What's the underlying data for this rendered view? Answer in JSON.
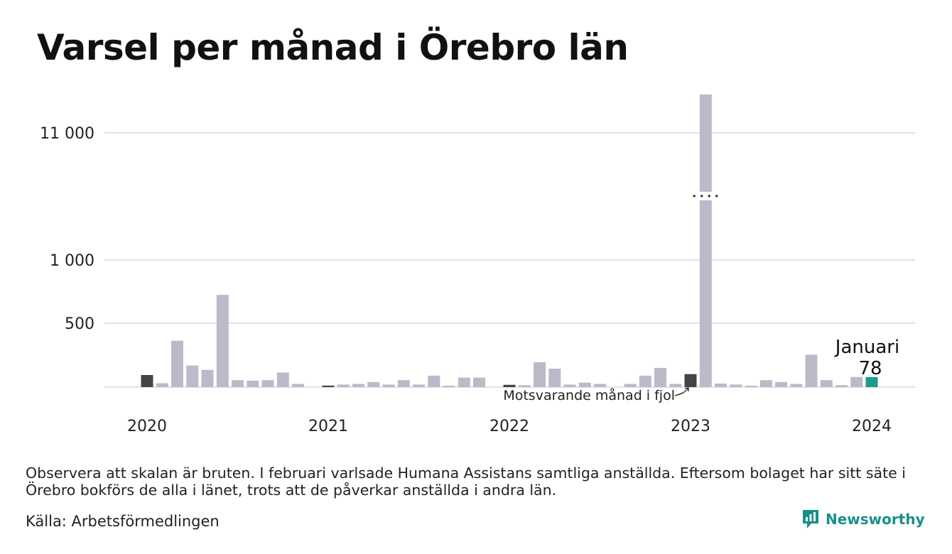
{
  "title": "Varsel per månad i Örebro län",
  "note": "Observera att skalan är bruten. I februari varlsade Humana Assistans samtliga anställda. Eftersom bolaget har sitt säte i Örebro bokförs de alla i länet, trots att de påverkar anställda i andra län.",
  "source": "Källa: Arbetsförmedlingen",
  "brand": {
    "name": "Newsworthy",
    "icon": "newsworthy-logo-icon"
  },
  "colors": {
    "bar": "#bcbac8",
    "same_month_last_year": "#444444",
    "current": "#1a9a8e",
    "grid": "#e2e2e6",
    "brand": "#1a8f8a"
  },
  "chart_data": {
    "type": "bar",
    "title": "Varsel per månad i Örebro län",
    "xlabel": "",
    "ylabel": "",
    "broken_scale": true,
    "x_tick_labels": [
      "2020",
      "2021",
      "2022",
      "2023",
      "2024"
    ],
    "y_tick_labels": [
      "500",
      "1 000",
      "11 000"
    ],
    "y_ticks": [
      500,
      1000,
      11000
    ],
    "grid": true,
    "categories": [
      "2020-01",
      "2020-02",
      "2020-03",
      "2020-04",
      "2020-05",
      "2020-06",
      "2020-07",
      "2020-08",
      "2020-09",
      "2020-10",
      "2020-11",
      "2020-12",
      "2021-01",
      "2021-02",
      "2021-03",
      "2021-04",
      "2021-05",
      "2021-06",
      "2021-07",
      "2021-08",
      "2021-09",
      "2021-10",
      "2021-11",
      "2021-12",
      "2022-01",
      "2022-02",
      "2022-03",
      "2022-04",
      "2022-05",
      "2022-06",
      "2022-07",
      "2022-08",
      "2022-09",
      "2022-10",
      "2022-11",
      "2022-12",
      "2023-01",
      "2023-02",
      "2023-03",
      "2023-04",
      "2023-05",
      "2023-06",
      "2023-07",
      "2023-08",
      "2023-09",
      "2023-10",
      "2023-11",
      "2023-12",
      "2024-01"
    ],
    "values": [
      95,
      30,
      365,
      170,
      135,
      725,
      55,
      50,
      55,
      115,
      25,
      0,
      12,
      20,
      25,
      40,
      20,
      55,
      20,
      90,
      10,
      75,
      75,
      0,
      18,
      15,
      195,
      145,
      20,
      35,
      25,
      0,
      25,
      90,
      150,
      25,
      102,
      12000,
      28,
      20,
      10,
      55,
      40,
      25,
      255,
      55,
      15,
      80,
      78
    ],
    "highlight": {
      "category": "2024-01",
      "label": "Januari",
      "value_label": "78",
      "same_month_last_year_label": "Motsvarande månad i fjol",
      "same_month_indices": [
        0,
        12,
        24,
        36
      ]
    }
  }
}
